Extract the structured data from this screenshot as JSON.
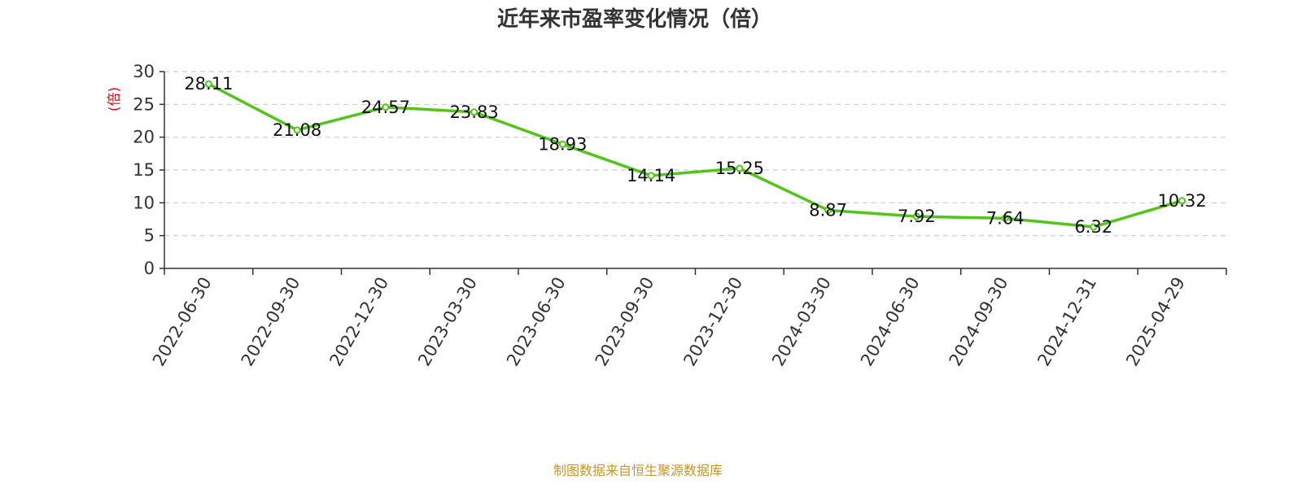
{
  "chart_data": {
    "type": "line",
    "title": "近年来市盈率变化情况（倍）",
    "ylabel": "(倍)",
    "xlabel": "",
    "categories": [
      "2022-06-30",
      "2022-09-30",
      "2022-12-30",
      "2023-03-30",
      "2023-06-30",
      "2023-09-30",
      "2023-12-30",
      "2024-03-30",
      "2024-06-30",
      "2024-09-30",
      "2024-12-31",
      "2025-04-29"
    ],
    "series": [
      {
        "values": [
          28.11,
          21.08,
          24.57,
          23.83,
          18.93,
          14.14,
          15.25,
          8.87,
          7.92,
          7.64,
          6.32,
          10.32
        ],
        "labels": [
          "28.11",
          "21.08",
          "24.57",
          "23.83",
          "18.93",
          "14.14",
          "15.25",
          "8.87",
          "7.92",
          "7.64",
          "6.32",
          "10.32"
        ]
      }
    ],
    "ylim": [
      0,
      30
    ],
    "yticks": [
      0,
      5,
      10,
      15,
      20,
      25,
      30
    ],
    "grid": true,
    "legend": "none",
    "source_note": "制图数据来自恒生聚源数据库",
    "colors": {
      "line": "#52c41a",
      "ylabel": "#e8000b",
      "source": "#c8962a"
    }
  }
}
